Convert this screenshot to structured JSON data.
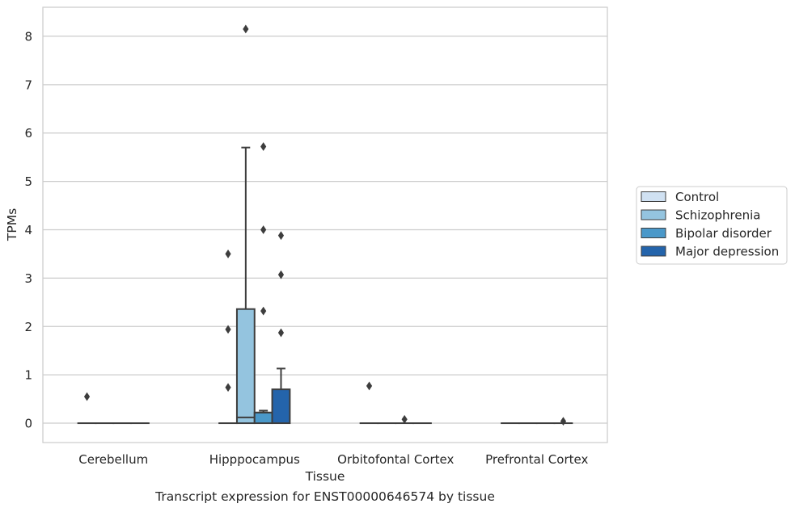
{
  "caption": "Transcript expression for ENST00000646574 by tissue",
  "chart_data": {
    "type": "box",
    "xlabel": "Tissue",
    "ylabel": "TPMs",
    "ylim": [
      -0.4,
      8.6
    ],
    "yticks": [
      0,
      1,
      2,
      3,
      4,
      5,
      6,
      7,
      8
    ],
    "grid": true,
    "legend_position": "right",
    "categories": [
      "Cerebellum",
      "Hipppocampus",
      "Orbitofontal Cortex",
      "Prefrontal Cortex"
    ],
    "series": [
      {
        "name": "Control",
        "color": "#d0e1f2",
        "boxes": [
          {
            "min": 0,
            "q1": 0,
            "median": 0,
            "q3": 0,
            "max": 0,
            "outliers": [
              0.55
            ]
          },
          {
            "min": 0,
            "q1": 0,
            "median": 0,
            "q3": 0,
            "max": 0,
            "outliers": []
          },
          {
            "min": 0,
            "q1": 0,
            "median": 0,
            "q3": 0,
            "max": 0,
            "outliers": [
              0.77
            ]
          },
          {
            "min": 0,
            "q1": 0,
            "median": 0,
            "q3": 0,
            "max": 0,
            "outliers": []
          }
        ]
      },
      {
        "name": "Schizophrenia",
        "color": "#94c4df",
        "boxes": [
          {
            "min": 0,
            "q1": 0,
            "median": 0,
            "q3": 0,
            "max": 0,
            "outliers": []
          },
          {
            "min": 0,
            "q1": 0,
            "median": 0.12,
            "q3": 2.36,
            "max": 5.7,
            "outliers": [
              8.15
            ]
          },
          {
            "min": 0,
            "q1": 0,
            "median": 0,
            "q3": 0,
            "max": 0,
            "outliers": []
          },
          {
            "min": 0,
            "q1": 0,
            "median": 0,
            "q3": 0,
            "max": 0,
            "outliers": []
          }
        ]
      },
      {
        "name": "Bipolar disorder",
        "color": "#4a98c9",
        "boxes": [
          {
            "min": 0,
            "q1": 0,
            "median": 0,
            "q3": 0,
            "max": 0,
            "outliers": []
          },
          {
            "min": 0,
            "q1": 0,
            "median": 0.22,
            "q3": 0.22,
            "max": 0.26,
            "outliers": [
              2.32,
              4.0,
              5.72
            ]
          },
          {
            "min": 0,
            "q1": 0,
            "median": 0,
            "q3": 0,
            "max": 0,
            "outliers": [
              0.08
            ]
          },
          {
            "min": 0,
            "q1": 0,
            "median": 0,
            "q3": 0,
            "max": 0,
            "outliers": []
          }
        ]
      },
      {
        "name": "Major depression",
        "color": "#2464ab",
        "boxes": [
          {
            "min": 0,
            "q1": 0,
            "median": 0,
            "q3": 0,
            "max": 0,
            "outliers": []
          },
          {
            "min": 0,
            "q1": 0,
            "median": 0,
            "q3": 0.7,
            "max": 1.13,
            "outliers": [
              1.87,
              3.07,
              3.88
            ]
          },
          {
            "min": 0,
            "q1": 0,
            "median": 0,
            "q3": 0,
            "max": 0,
            "outliers": []
          },
          {
            "min": 0,
            "q1": 0,
            "median": 0,
            "q3": 0,
            "max": 0,
            "outliers": [
              0.04
            ]
          }
        ]
      }
    ],
    "extra_outliers": [
      {
        "category": "Hipppocampus",
        "values": [
          0.74,
          1.94,
          3.5
        ]
      }
    ]
  }
}
